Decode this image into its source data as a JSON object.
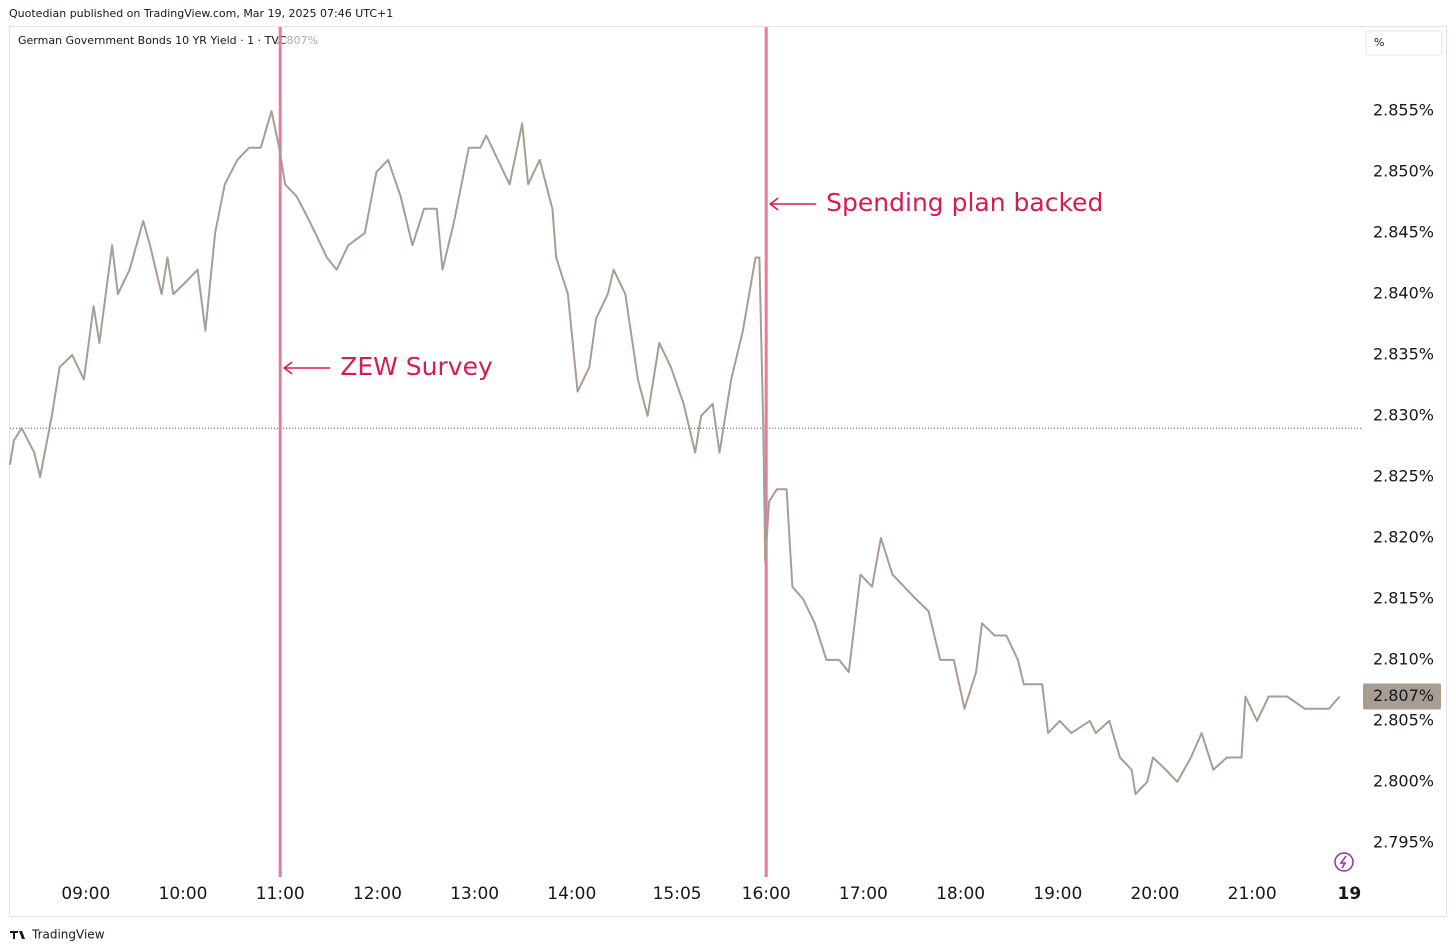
{
  "header": {
    "text": "Quotedian published on TradingView.com, Mar 19, 2025 07:46 UTC+1"
  },
  "footer": {
    "brand": "TradingView"
  },
  "chart_data": {
    "type": "line",
    "y_unit": "%",
    "x": [
      8.22,
      8.26,
      8.34,
      8.47,
      8.53,
      8.65,
      8.73,
      8.86,
      8.98,
      9.08,
      9.14,
      9.27,
      9.33,
      9.45,
      9.59,
      9.66,
      9.78,
      9.84,
      9.9,
      10.03,
      10.15,
      10.23,
      10.33,
      10.43,
      10.56,
      10.68,
      10.8,
      10.91,
      10.99,
      11.05,
      11.17,
      11.3,
      11.48,
      11.58,
      11.7,
      11.87,
      11.99,
      12.11,
      12.24,
      12.36,
      12.48,
      12.61,
      12.67,
      12.79,
      12.94,
      13.06,
      13.12,
      13.24,
      13.36,
      13.49,
      13.55,
      13.67,
      13.8,
      13.84,
      13.96,
      14.06,
      14.18,
      14.25,
      14.37,
      14.43,
      14.55,
      14.68,
      14.78,
      14.9,
      15.02,
      15.15,
      15.27,
      15.33,
      15.45,
      15.52,
      15.64,
      15.76,
      15.89,
      15.93,
      15.97,
      15.99,
      16.03,
      16.11,
      16.21,
      16.27,
      16.38,
      16.5,
      16.62,
      16.75,
      16.85,
      16.97,
      17.09,
      17.18,
      17.3,
      17.42,
      17.54,
      17.67,
      17.79,
      17.93,
      18.04,
      18.16,
      18.22,
      18.35,
      18.47,
      18.59,
      18.65,
      18.84,
      18.9,
      19.02,
      19.14,
      19.33,
      19.39,
      19.53,
      19.64,
      19.76,
      19.8,
      19.92,
      19.98,
      20.11,
      20.23,
      20.37,
      20.48,
      20.6,
      20.74,
      20.89,
      20.93,
      21.05,
      21.17,
      21.36,
      21.54,
      21.66,
      21.79,
      21.9
    ],
    "series": [
      {
        "name": "German Government Bonds 10 YR Yield · 1 · TVC",
        "color": "#a89d92",
        "values": [
          2.826,
          2.828,
          2.829,
          2.827,
          2.825,
          2.83,
          2.834,
          2.835,
          2.833,
          2.839,
          2.836,
          2.844,
          2.84,
          2.842,
          2.846,
          2.844,
          2.84,
          2.843,
          2.84,
          2.841,
          2.842,
          2.837,
          2.845,
          2.849,
          2.851,
          2.852,
          2.852,
          2.855,
          2.852,
          2.849,
          2.848,
          2.846,
          2.843,
          2.842,
          2.844,
          2.845,
          2.85,
          2.851,
          2.848,
          2.844,
          2.847,
          2.847,
          2.842,
          2.846,
          2.852,
          2.852,
          2.853,
          2.851,
          2.849,
          2.854,
          2.849,
          2.851,
          2.847,
          2.843,
          2.84,
          2.832,
          2.834,
          2.838,
          2.84,
          2.842,
          2.84,
          2.833,
          2.83,
          2.836,
          2.834,
          2.831,
          2.827,
          2.83,
          2.831,
          2.827,
          2.833,
          2.837,
          2.843,
          2.843,
          2.829,
          2.818,
          2.823,
          2.824,
          2.824,
          2.816,
          2.815,
          2.813,
          2.81,
          2.81,
          2.809,
          2.817,
          2.816,
          2.82,
          2.817,
          2.816,
          2.815,
          2.814,
          2.81,
          2.81,
          2.806,
          2.809,
          2.813,
          2.812,
          2.812,
          2.81,
          2.808,
          2.808,
          2.804,
          2.805,
          2.804,
          2.805,
          2.804,
          2.805,
          2.802,
          2.801,
          2.799,
          2.8,
          2.802,
          2.801,
          2.8,
          2.802,
          2.804,
          2.801,
          2.802,
          2.802,
          2.807,
          2.805,
          2.807,
          2.807,
          2.806,
          2.806,
          2.806,
          2.807
        ]
      }
    ],
    "last_value": 2.807,
    "last_value_label": "2.807%",
    "reference_line": 2.829,
    "annotations": [
      {
        "x": 11,
        "text": "ZEW Survey"
      },
      {
        "x": 16,
        "text": "Spending plan backed"
      }
    ],
    "annotation_color": "#d81b50",
    "event_line_color": "#e87a9c",
    "xlim": [
      8.22,
      22.13
    ],
    "ylim": [
      2.7922,
      2.8619
    ],
    "xticks": [
      {
        "value": 9,
        "label": "09:00"
      },
      {
        "value": 10,
        "label": "10:00"
      },
      {
        "value": 11,
        "label": "11:00"
      },
      {
        "value": 12,
        "label": "12:00"
      },
      {
        "value": 13,
        "label": "13:00"
      },
      {
        "value": 14,
        "label": "14:00"
      },
      {
        "value": 15.0833,
        "label": "15:05"
      },
      {
        "value": 16,
        "label": "16:00"
      },
      {
        "value": 17,
        "label": "17:00"
      },
      {
        "value": 18,
        "label": "18:00"
      },
      {
        "value": 19,
        "label": "19:00"
      },
      {
        "value": 20,
        "label": "20:00"
      },
      {
        "value": 21,
        "label": "21:00"
      },
      {
        "value": 22,
        "label": "19"
      }
    ],
    "yticks": [
      {
        "value": 2.795,
        "label": "2.795%"
      },
      {
        "value": 2.8,
        "label": "2.800%"
      },
      {
        "value": 2.805,
        "label": "2.805%"
      },
      {
        "value": 2.81,
        "label": "2.810%"
      },
      {
        "value": 2.815,
        "label": "2.815%"
      },
      {
        "value": 2.82,
        "label": "2.820%"
      },
      {
        "value": 2.825,
        "label": "2.825%"
      },
      {
        "value": 2.83,
        "label": "2.830%"
      },
      {
        "value": 2.835,
        "label": "2.835%"
      },
      {
        "value": 2.84,
        "label": "2.840%"
      },
      {
        "value": 2.845,
        "label": "2.845%"
      },
      {
        "value": 2.85,
        "label": "2.850%"
      },
      {
        "value": 2.855,
        "label": "2.855%"
      }
    ],
    "grid": false
  }
}
